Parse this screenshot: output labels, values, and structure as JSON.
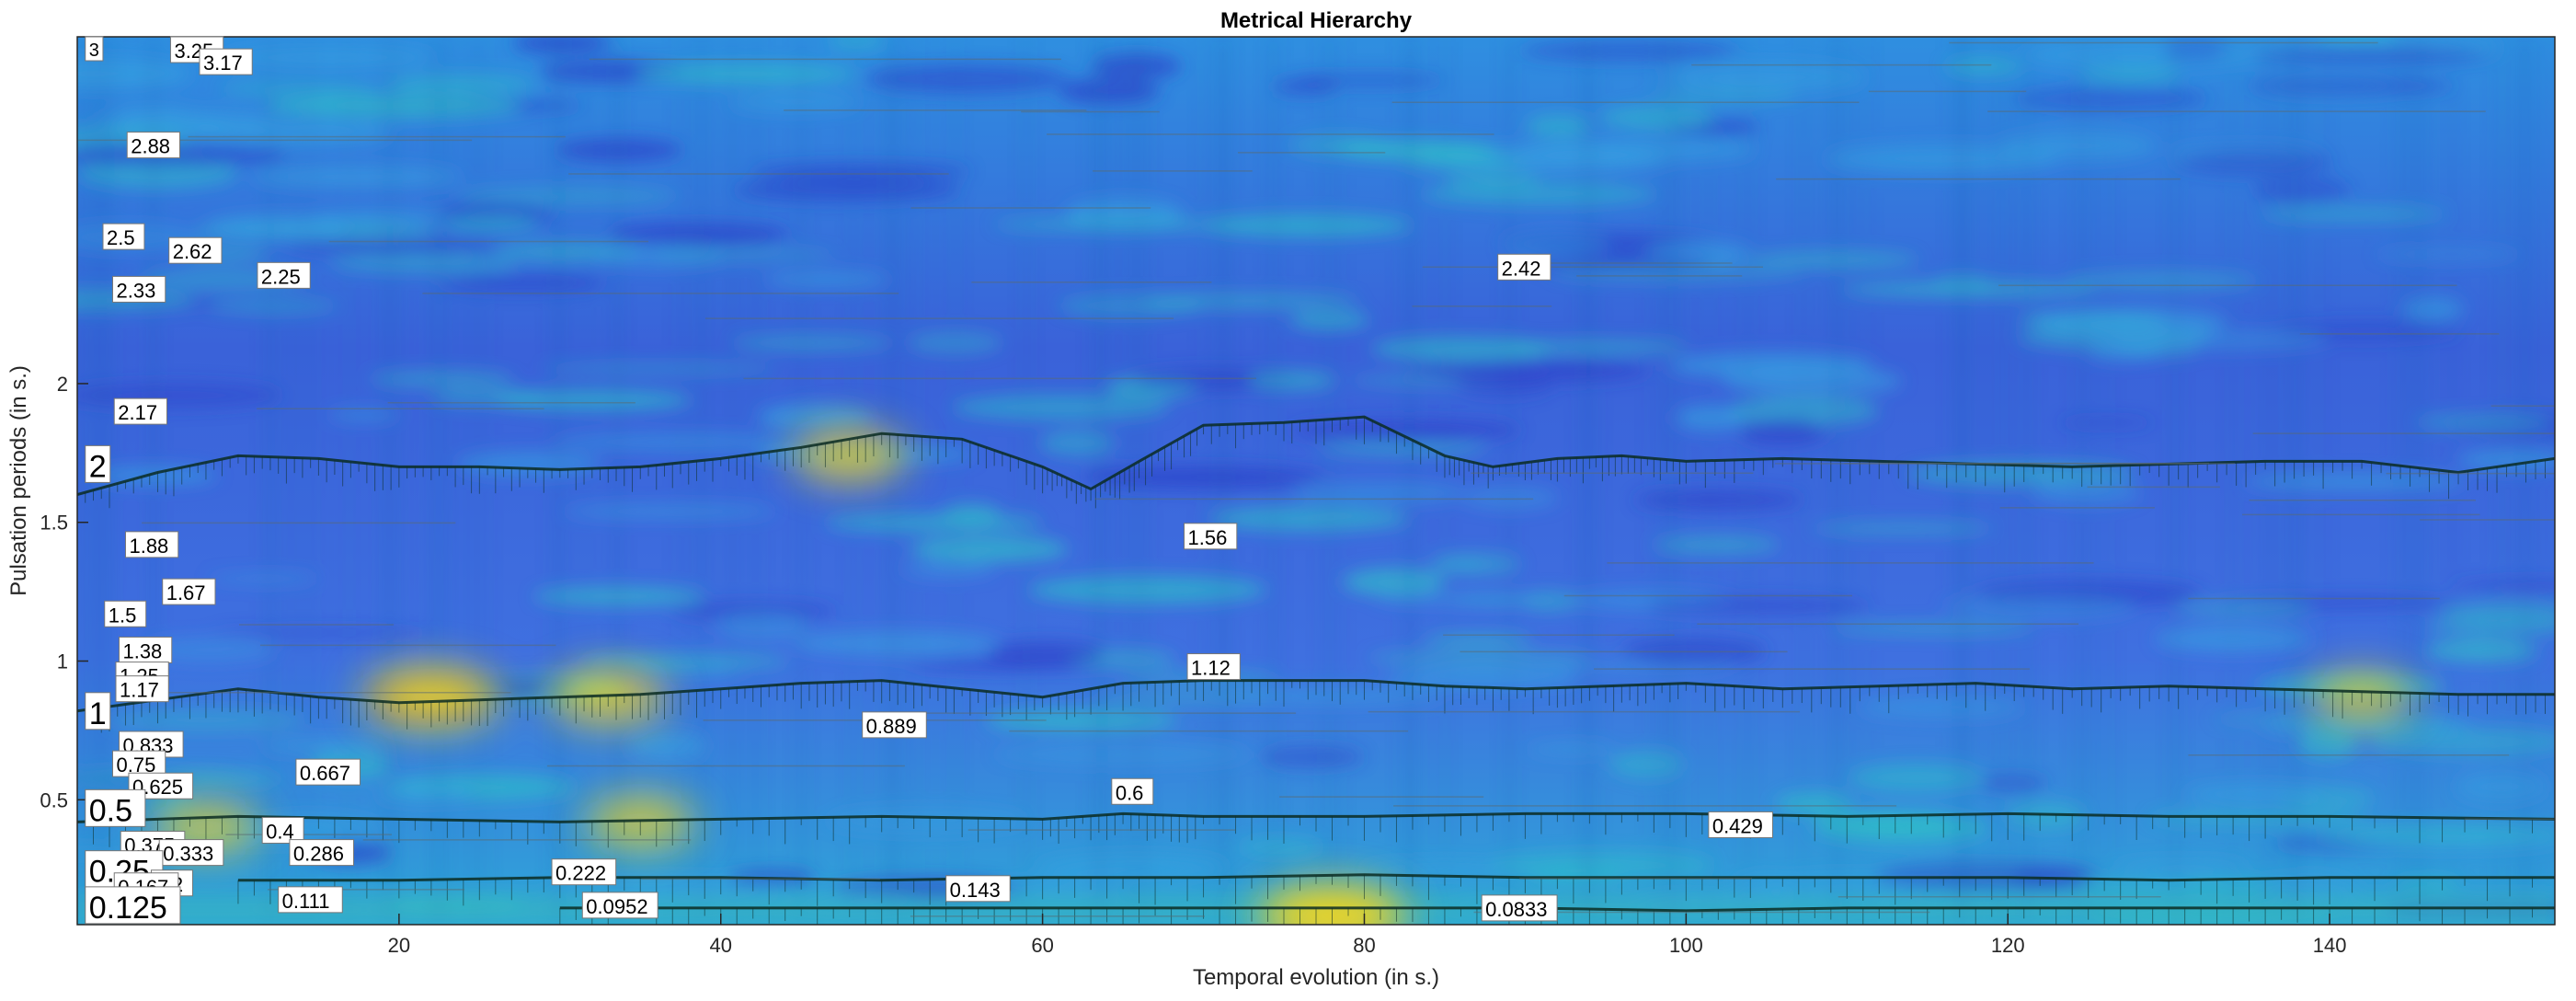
{
  "chart_data": {
    "type": "heatmap",
    "title": "Metrical Hierarchy",
    "xlabel": "Temporal evolution (in s.)",
    "ylabel": "Pulsation periods (in s.)",
    "xlim": [
      0,
      154
    ],
    "ylim": [
      0.05,
      3.25
    ],
    "x_ticks": [
      20,
      40,
      60,
      80,
      100,
      120,
      140
    ],
    "y_ticks": [
      0.5,
      1,
      1.5,
      2
    ],
    "grid": false,
    "colormap": "parula",
    "colors": {
      "low": "#3a53d6",
      "mid": "#22b2c8",
      "high": "#f5d51e",
      "peak": "#f9e52a",
      "line": "#0b2b22"
    },
    "hot_spots": [
      {
        "x": 78,
        "y": 0.08,
        "intensity": 1.0
      },
      {
        "x": 22,
        "y": 0.87,
        "intensity": 0.85
      },
      {
        "x": 33,
        "y": 0.87,
        "intensity": 0.6
      },
      {
        "x": 48,
        "y": 1.74,
        "intensity": 0.55
      },
      {
        "x": 35,
        "y": 0.42,
        "intensity": 0.5
      },
      {
        "x": 8,
        "y": 0.4,
        "intensity": 0.45
      },
      {
        "x": 142,
        "y": 0.87,
        "intensity": 0.4
      }
    ],
    "metrical_lines": [
      {
        "period": 1.72,
        "values": [
          [
            0,
            1.6
          ],
          [
            5,
            1.68
          ],
          [
            10,
            1.74
          ],
          [
            15,
            1.73
          ],
          [
            20,
            1.7
          ],
          [
            25,
            1.7
          ],
          [
            30,
            1.69
          ],
          [
            35,
            1.7
          ],
          [
            40,
            1.73
          ],
          [
            45,
            1.77
          ],
          [
            50,
            1.82
          ],
          [
            55,
            1.8
          ],
          [
            60,
            1.7
          ],
          [
            63,
            1.62
          ],
          [
            66,
            1.72
          ],
          [
            70,
            1.85
          ],
          [
            75,
            1.86
          ],
          [
            80,
            1.88
          ],
          [
            85,
            1.74
          ],
          [
            88,
            1.7
          ],
          [
            92,
            1.73
          ],
          [
            96,
            1.74
          ],
          [
            100,
            1.72
          ],
          [
            106,
            1.73
          ],
          [
            112,
            1.72
          ],
          [
            118,
            1.71
          ],
          [
            124,
            1.7
          ],
          [
            130,
            1.71
          ],
          [
            136,
            1.72
          ],
          [
            142,
            1.72
          ],
          [
            148,
            1.68
          ],
          [
            154,
            1.73
          ]
        ]
      },
      {
        "period": 0.87,
        "values": [
          [
            0,
            0.82
          ],
          [
            5,
            0.86
          ],
          [
            10,
            0.9
          ],
          [
            15,
            0.87
          ],
          [
            20,
            0.85
          ],
          [
            25,
            0.86
          ],
          [
            30,
            0.87
          ],
          [
            35,
            0.88
          ],
          [
            40,
            0.9
          ],
          [
            45,
            0.92
          ],
          [
            50,
            0.93
          ],
          [
            55,
            0.9
          ],
          [
            60,
            0.87
          ],
          [
            65,
            0.92
          ],
          [
            70,
            0.93
          ],
          [
            75,
            0.93
          ],
          [
            80,
            0.93
          ],
          [
            85,
            0.91
          ],
          [
            90,
            0.9
          ],
          [
            95,
            0.91
          ],
          [
            100,
            0.92
          ],
          [
            106,
            0.9
          ],
          [
            112,
            0.91
          ],
          [
            118,
            0.92
          ],
          [
            124,
            0.9
          ],
          [
            130,
            0.91
          ],
          [
            136,
            0.9
          ],
          [
            142,
            0.89
          ],
          [
            148,
            0.88
          ],
          [
            154,
            0.88
          ]
        ]
      },
      {
        "period": 0.43,
        "values": [
          [
            0,
            0.42
          ],
          [
            10,
            0.44
          ],
          [
            20,
            0.43
          ],
          [
            30,
            0.42
          ],
          [
            40,
            0.43
          ],
          [
            50,
            0.44
          ],
          [
            60,
            0.43
          ],
          [
            65,
            0.45
          ],
          [
            70,
            0.44
          ],
          [
            80,
            0.44
          ],
          [
            90,
            0.45
          ],
          [
            100,
            0.45
          ],
          [
            110,
            0.44
          ],
          [
            120,
            0.45
          ],
          [
            130,
            0.44
          ],
          [
            140,
            0.44
          ],
          [
            154,
            0.43
          ]
        ]
      },
      {
        "period": 0.22,
        "values": [
          [
            10,
            0.21
          ],
          [
            20,
            0.21
          ],
          [
            30,
            0.22
          ],
          [
            40,
            0.22
          ],
          [
            50,
            0.21
          ],
          [
            60,
            0.22
          ],
          [
            70,
            0.22
          ],
          [
            80,
            0.23
          ],
          [
            90,
            0.22
          ],
          [
            100,
            0.22
          ],
          [
            110,
            0.22
          ],
          [
            120,
            0.22
          ],
          [
            130,
            0.21
          ],
          [
            140,
            0.22
          ],
          [
            154,
            0.22
          ]
        ]
      },
      {
        "period": 0.11,
        "values": [
          [
            30,
            0.11
          ],
          [
            40,
            0.11
          ],
          [
            50,
            0.11
          ],
          [
            60,
            0.11
          ],
          [
            70,
            0.11
          ],
          [
            80,
            0.11
          ],
          [
            90,
            0.11
          ],
          [
            100,
            0.1
          ],
          [
            110,
            0.11
          ],
          [
            120,
            0.11
          ],
          [
            130,
            0.11
          ],
          [
            140,
            0.11
          ],
          [
            154,
            0.11
          ]
        ]
      }
    ],
    "annotations": [
      {
        "label": "3",
        "x": 0.5,
        "y": 3.22,
        "size": 20
      },
      {
        "label": "3.25",
        "x": 5.8,
        "y": 3.23,
        "size": 22
      },
      {
        "label": "3.17",
        "x": 7.6,
        "y": 3.16,
        "size": 22
      },
      {
        "label": "2.88",
        "x": 3.1,
        "y": 2.86,
        "size": 22
      },
      {
        "label": "2.42",
        "x": 88.3,
        "y": 2.42,
        "size": 22
      },
      {
        "label": "2.5",
        "x": 1.6,
        "y": 2.53,
        "size": 22
      },
      {
        "label": "2.62",
        "x": 5.7,
        "y": 2.48,
        "size": 22
      },
      {
        "label": "2.33",
        "x": 2.2,
        "y": 2.34,
        "size": 22
      },
      {
        "label": "2.25",
        "x": 11.2,
        "y": 2.39,
        "size": 22
      },
      {
        "label": "2.17",
        "x": 2.3,
        "y": 1.9,
        "size": 22
      },
      {
        "label": "2",
        "x": 0.5,
        "y": 1.71,
        "size": 34
      },
      {
        "label": "1.88",
        "x": 3.0,
        "y": 1.42,
        "size": 22
      },
      {
        "label": "1.56",
        "x": 68.8,
        "y": 1.45,
        "size": 22
      },
      {
        "label": "1.67",
        "x": 5.3,
        "y": 1.25,
        "size": 22
      },
      {
        "label": "1.5",
        "x": 1.7,
        "y": 1.17,
        "size": 22
      },
      {
        "label": "1.38",
        "x": 2.6,
        "y": 1.04,
        "size": 22
      },
      {
        "label": "1.12",
        "x": 69.0,
        "y": 0.98,
        "size": 22
      },
      {
        "label": "1.25",
        "x": 2.4,
        "y": 0.95,
        "size": 22
      },
      {
        "label": "1.17",
        "x": 2.4,
        "y": 0.9,
        "size": 22
      },
      {
        "label": "1",
        "x": 0.5,
        "y": 0.82,
        "size": 34
      },
      {
        "label": "0.889",
        "x": 48.8,
        "y": 0.77,
        "size": 22
      },
      {
        "label": "0.833",
        "x": 2.6,
        "y": 0.7,
        "size": 22
      },
      {
        "label": "0.75",
        "x": 2.2,
        "y": 0.63,
        "size": 22
      },
      {
        "label": "0.667",
        "x": 13.6,
        "y": 0.6,
        "size": 22
      },
      {
        "label": "0.625",
        "x": 3.2,
        "y": 0.55,
        "size": 22
      },
      {
        "label": "0.6",
        "x": 64.3,
        "y": 0.53,
        "size": 22
      },
      {
        "label": "0.5",
        "x": 0.5,
        "y": 0.47,
        "size": 34
      },
      {
        "label": "0.429",
        "x": 101.4,
        "y": 0.41,
        "size": 22
      },
      {
        "label": "0.4",
        "x": 11.5,
        "y": 0.39,
        "size": 22
      },
      {
        "label": "0.375",
        "x": 2.7,
        "y": 0.34,
        "size": 22
      },
      {
        "label": "0.333",
        "x": 5.1,
        "y": 0.31,
        "size": 22
      },
      {
        "label": "0.286",
        "x": 13.2,
        "y": 0.31,
        "size": 22
      },
      {
        "label": "0.25",
        "x": 0.5,
        "y": 0.25,
        "size": 34
      },
      {
        "label": "0.222",
        "x": 29.5,
        "y": 0.24,
        "size": 22
      },
      {
        "label": "0.2",
        "x": 4.6,
        "y": 0.2,
        "size": 22
      },
      {
        "label": "0.167",
        "x": 2.3,
        "y": 0.19,
        "size": 22
      },
      {
        "label": "0.143",
        "x": 54.0,
        "y": 0.18,
        "size": 22
      },
      {
        "label": "0.125",
        "x": 0.5,
        "y": 0.12,
        "size": 34
      },
      {
        "label": "0.111",
        "x": 12.5,
        "y": 0.14,
        "size": 22
      },
      {
        "label": "0.0952",
        "x": 31.4,
        "y": 0.12,
        "size": 22
      },
      {
        "label": "0.0833",
        "x": 87.3,
        "y": 0.11,
        "size": 22
      }
    ]
  }
}
